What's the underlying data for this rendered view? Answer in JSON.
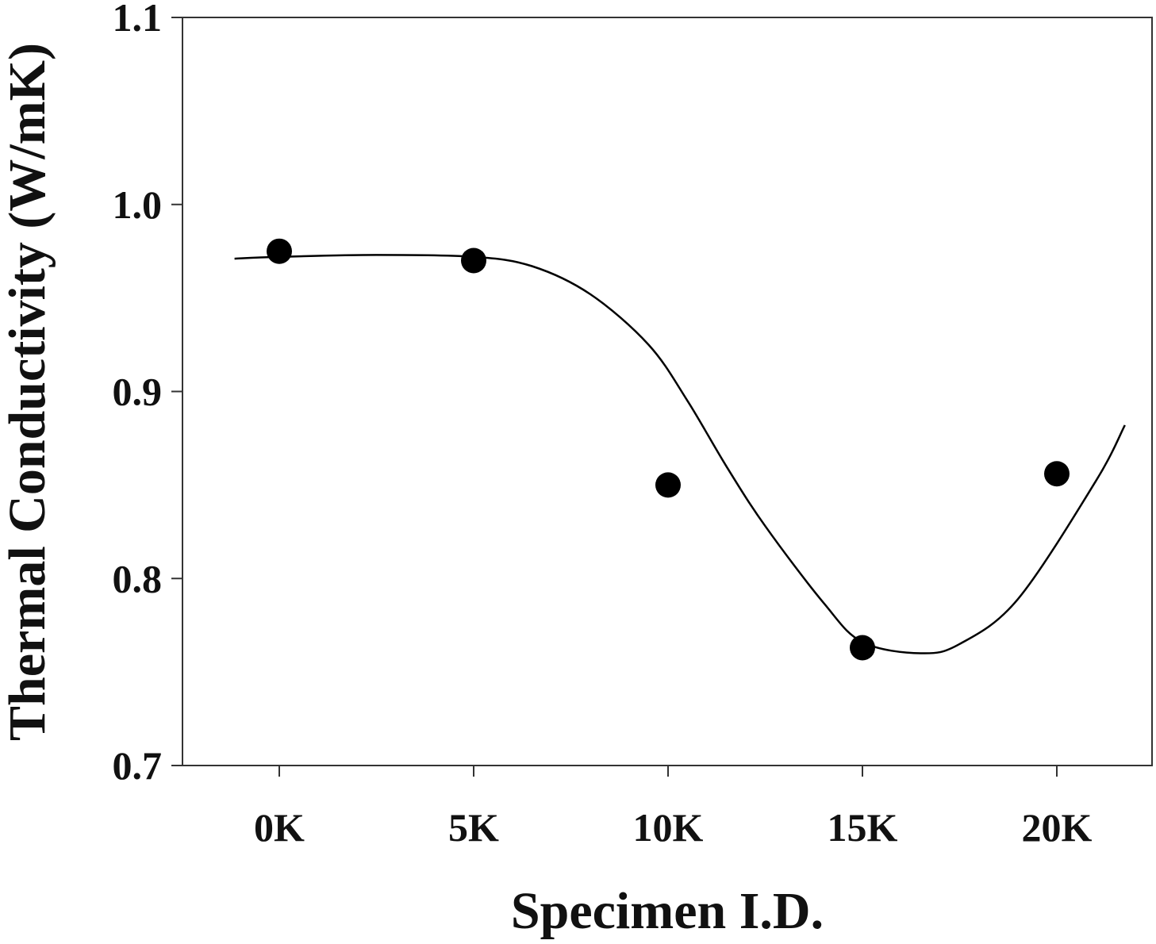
{
  "chart_data": {
    "type": "scatter",
    "title": "",
    "xlabel": "Specimen I.D.",
    "ylabel": "Thermal Conductivity (W/mK)",
    "categories": [
      "0K",
      "5K",
      "10K",
      "15K",
      "20K"
    ],
    "ylim": [
      0.7,
      1.1
    ],
    "yticks": [
      "0.7",
      "0.8",
      "0.9",
      "1.0",
      "1.1"
    ],
    "grid": false,
    "legend": "none",
    "series": [
      {
        "values": [
          0.975,
          0.97,
          0.85,
          0.763,
          0.856
        ],
        "marker": "filled-circle",
        "color": "#000000"
      }
    ],
    "fit_curve": {
      "style": "smooth",
      "color": "#000000",
      "points": [
        [
          -0.23,
          0.971
        ],
        [
          0.0,
          0.972
        ],
        [
          0.5,
          0.973
        ],
        [
          1.0,
          0.972
        ],
        [
          1.3,
          0.967
        ],
        [
          1.6,
          0.952
        ],
        [
          1.9,
          0.925
        ],
        [
          2.1,
          0.895
        ],
        [
          2.3,
          0.86
        ],
        [
          2.5,
          0.828
        ],
        [
          2.8,
          0.787
        ],
        [
          3.0,
          0.766
        ],
        [
          3.3,
          0.76
        ],
        [
          3.5,
          0.765
        ],
        [
          3.8,
          0.789
        ],
        [
          4.2,
          0.852
        ],
        [
          4.35,
          0.882
        ]
      ]
    }
  }
}
